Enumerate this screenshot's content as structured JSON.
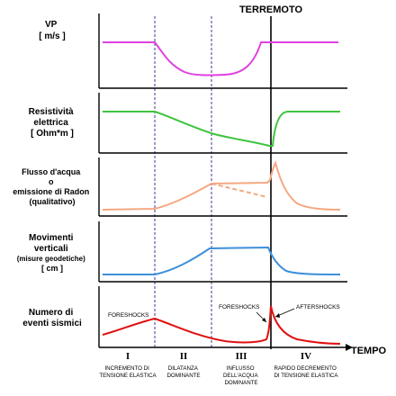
{
  "event_label": "TERREMOTO",
  "time_label": "TEMPO",
  "panels": [
    {
      "id": "vp",
      "label_lines": [
        "VP",
        "[ m/s ]"
      ],
      "color": "#e040e0"
    },
    {
      "id": "resist",
      "label_lines": [
        "Resistività",
        "elettrica",
        "[ Ohm*m ]"
      ],
      "color": "#3ec43e"
    },
    {
      "id": "flusso",
      "label_lines": [
        "Flusso d'acqua",
        "o",
        "emissione di Radon",
        "(qualitativo)"
      ],
      "color": "#f4a882"
    },
    {
      "id": "movimenti",
      "label_lines": [
        "Movimenti",
        "verticali",
        "(misure geodetiche)",
        "[ cm ]"
      ],
      "color": "#3d8fd9"
    },
    {
      "id": "eventi",
      "label_lines": [
        "Numero di",
        "eventi sismici"
      ],
      "color": "#e01010"
    }
  ],
  "annotations": {
    "foreshocks_left": "FORESHOCKS",
    "foreshocks_right": "FORESHOCKS",
    "aftershocks": "AFTERSHOCKS"
  },
  "phases": [
    {
      "numeral": "I",
      "desc_lines": [
        "INCREMENTO DI",
        "TENSIONE ELASTICA"
      ]
    },
    {
      "numeral": "II",
      "desc_lines": [
        "DILATANZA",
        "DOMINANTE"
      ]
    },
    {
      "numeral": "III",
      "desc_lines": [
        "INFLUSSO",
        "DELL'ACQUA",
        "DOMINANTE"
      ]
    },
    {
      "numeral": "IV",
      "desc_lines": [
        "RAPIDO DECREMENTO",
        "DI TENSIONE ELASTICA"
      ]
    }
  ]
}
